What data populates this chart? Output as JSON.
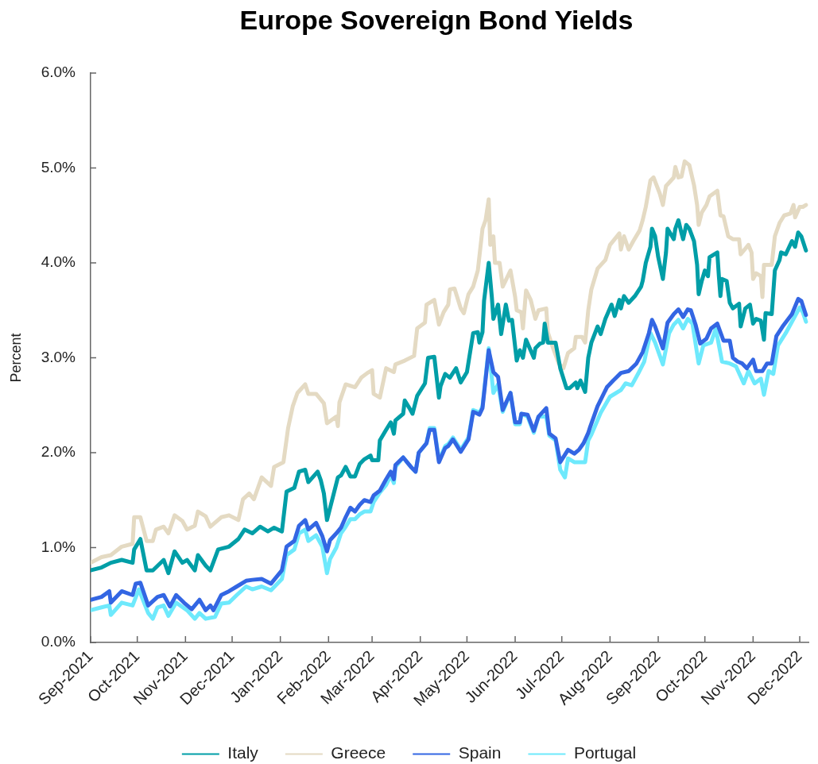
{
  "chart_data": {
    "type": "line",
    "title": "Europe Sovereign Bond Yields",
    "ylabel": "Percent",
    "xlim": [
      "2021-09-01",
      "2022-12-07"
    ],
    "xticks": [
      {
        "value": "2021-09-01",
        "label": "Sep-2021"
      },
      {
        "value": "2021-10-01",
        "label": "Oct-2021"
      },
      {
        "value": "2021-11-01",
        "label": "Nov-2021"
      },
      {
        "value": "2021-12-01",
        "label": "Dec-2021"
      },
      {
        "value": "2022-01-01",
        "label": "Jan-2022"
      },
      {
        "value": "2022-02-01",
        "label": "Feb-2022"
      },
      {
        "value": "2022-03-01",
        "label": "Mar-2022"
      },
      {
        "value": "2022-04-01",
        "label": "Apr-2022"
      },
      {
        "value": "2022-05-01",
        "label": "May-2022"
      },
      {
        "value": "2022-06-01",
        "label": "Jun-2022"
      },
      {
        "value": "2022-07-01",
        "label": "Jul-2022"
      },
      {
        "value": "2022-08-01",
        "label": "Aug-2022"
      },
      {
        "value": "2022-09-01",
        "label": "Sep-2022"
      },
      {
        "value": "2022-10-01",
        "label": "Oct-2022"
      },
      {
        "value": "2022-11-01",
        "label": "Nov-2022"
      },
      {
        "value": "2022-12-01",
        "label": "Dec-2022"
      }
    ],
    "ylim": [
      0,
      6
    ],
    "yticks": [
      {
        "value": 0,
        "label": "0.0%"
      },
      {
        "value": 1,
        "label": "1.0%"
      },
      {
        "value": 2,
        "label": "2.0%"
      },
      {
        "value": 3,
        "label": "3.0%"
      },
      {
        "value": 4,
        "label": "4.0%"
      },
      {
        "value": 5,
        "label": "5.0%"
      },
      {
        "value": 6,
        "label": "6.0%"
      }
    ],
    "legend": "bottom",
    "marker": "none",
    "line_style": "solid",
    "series": [
      {
        "name": "Italy",
        "color": "#009ea7",
        "x": [
          "2021-09-01",
          "2021-09-08",
          "2021-09-14",
          "2021-09-21",
          "2021-09-28",
          "2021-09-29",
          "2021-10-03",
          "2021-10-07",
          "2021-10-11",
          "2021-10-18",
          "2021-10-21",
          "2021-10-25",
          "2021-10-30",
          "2021-11-02",
          "2021-11-07",
          "2021-11-09",
          "2021-11-14",
          "2021-11-17",
          "2021-11-22",
          "2021-11-29",
          "2021-12-05",
          "2021-12-09",
          "2021-12-14",
          "2021-12-19",
          "2021-12-24",
          "2021-12-28",
          "2022-01-02",
          "2022-01-05",
          "2022-01-10",
          "2022-01-13",
          "2022-01-17",
          "2022-01-19",
          "2022-01-25",
          "2022-01-27",
          "2022-01-29",
          "2022-01-31",
          "2022-02-07",
          "2022-02-09",
          "2022-02-12",
          "2022-02-15",
          "2022-02-18",
          "2022-02-21",
          "2022-02-24",
          "2022-02-28",
          "2022-03-01",
          "2022-03-05",
          "2022-03-06",
          "2022-03-10",
          "2022-03-13",
          "2022-03-15",
          "2022-03-16",
          "2022-03-21",
          "2022-03-22",
          "2022-03-25",
          "2022-03-27",
          "2022-03-30",
          "2022-04-04",
          "2022-04-06",
          "2022-04-10",
          "2022-04-13",
          "2022-04-14",
          "2022-04-17",
          "2022-04-20",
          "2022-04-24",
          "2022-04-27",
          "2022-05-01",
          "2022-05-05",
          "2022-05-08",
          "2022-05-09",
          "2022-05-11",
          "2022-05-12",
          "2022-05-15",
          "2022-05-17",
          "2022-05-18",
          "2022-05-21",
          "2022-05-23",
          "2022-05-26",
          "2022-05-28",
          "2022-05-30",
          "2022-06-02",
          "2022-06-04",
          "2022-06-06",
          "2022-06-08",
          "2022-06-13",
          "2022-06-14",
          "2022-06-17",
          "2022-06-19",
          "2022-06-20",
          "2022-06-22",
          "2022-06-27",
          "2022-06-30",
          "2022-07-04",
          "2022-07-06",
          "2022-07-10",
          "2022-07-11",
          "2022-07-13",
          "2022-07-16",
          "2022-07-18",
          "2022-07-20",
          "2022-07-24",
          "2022-07-26",
          "2022-07-29",
          "2022-08-02",
          "2022-08-04",
          "2022-08-07",
          "2022-08-08",
          "2022-08-10",
          "2022-08-13",
          "2022-08-17",
          "2022-08-21",
          "2022-08-22",
          "2022-08-24",
          "2022-08-27",
          "2022-08-28",
          "2022-08-30",
          "2022-09-01",
          "2022-09-04",
          "2022-09-06",
          "2022-09-07",
          "2022-09-11",
          "2022-09-12",
          "2022-09-14",
          "2022-09-16",
          "2022-09-17",
          "2022-09-19",
          "2022-09-21",
          "2022-09-24",
          "2022-09-26",
          "2022-09-27",
          "2022-09-29",
          "2022-10-01",
          "2022-10-03",
          "2022-10-04",
          "2022-10-09",
          "2022-10-10",
          "2022-10-11",
          "2022-10-12",
          "2022-10-15",
          "2022-10-17",
          "2022-10-19",
          "2022-10-23",
          "2022-10-24",
          "2022-10-27",
          "2022-10-30",
          "2022-11-01",
          "2022-11-03",
          "2022-11-06",
          "2022-11-08",
          "2022-11-09",
          "2022-11-13",
          "2022-11-15",
          "2022-11-18",
          "2022-11-19",
          "2022-11-22",
          "2022-11-26",
          "2022-11-28",
          "2022-11-30",
          "2022-12-02",
          "2022-12-05"
        ],
        "values": [
          0.76,
          0.79,
          0.84,
          0.87,
          0.84,
          0.98,
          1.09,
          0.76,
          0.76,
          0.87,
          0.73,
          0.96,
          0.84,
          0.87,
          0.76,
          0.92,
          0.81,
          0.76,
          0.98,
          1.01,
          1.09,
          1.19,
          1.15,
          1.22,
          1.17,
          1.21,
          1.17,
          1.59,
          1.63,
          1.8,
          1.82,
          1.69,
          1.8,
          1.71,
          1.57,
          1.29,
          1.74,
          1.76,
          1.85,
          1.75,
          1.75,
          1.88,
          1.93,
          1.97,
          1.92,
          1.92,
          2.13,
          2.24,
          2.32,
          2.2,
          2.34,
          2.41,
          2.55,
          2.47,
          2.41,
          2.6,
          2.73,
          3.0,
          3.01,
          2.58,
          2.7,
          2.83,
          2.79,
          2.89,
          2.74,
          2.85,
          3.26,
          3.27,
          3.16,
          3.27,
          3.6,
          4.0,
          3.64,
          3.41,
          3.56,
          3.25,
          3.56,
          3.39,
          3.4,
          2.97,
          3.08,
          3.0,
          3.19,
          3.0,
          3.1,
          3.15,
          3.16,
          3.36,
          3.16,
          3.16,
          2.89,
          2.68,
          2.68,
          2.74,
          2.68,
          2.76,
          2.64,
          3.0,
          3.16,
          3.33,
          3.25,
          3.41,
          3.56,
          3.44,
          3.61,
          3.52,
          3.65,
          3.58,
          3.65,
          3.75,
          3.81,
          4.0,
          4.17,
          4.36,
          4.28,
          4.06,
          3.83,
          4.11,
          4.36,
          4.25,
          4.36,
          4.45,
          4.31,
          4.25,
          4.4,
          4.36,
          4.23,
          3.98,
          3.67,
          3.81,
          3.92,
          3.86,
          4.06,
          4.11,
          3.86,
          3.65,
          3.83,
          3.81,
          3.58,
          3.52,
          3.57,
          3.33,
          3.52,
          3.56,
          3.36,
          3.41,
          3.39,
          3.19,
          3.47,
          3.46,
          3.92,
          4.03,
          4.11,
          4.09,
          4.23,
          4.17,
          4.32,
          4.28,
          4.13
        ]
      },
      {
        "name": "Greece",
        "color": "#e4dac3",
        "x": [
          "2021-09-01",
          "2021-09-08",
          "2021-09-14",
          "2021-09-21",
          "2021-09-28",
          "2021-09-29",
          "2021-10-03",
          "2021-10-07",
          "2021-10-11",
          "2021-10-13",
          "2021-10-18",
          "2021-10-21",
          "2021-10-25",
          "2021-10-30",
          "2021-11-02",
          "2021-11-07",
          "2021-11-09",
          "2021-11-14",
          "2021-11-17",
          "2021-11-24",
          "2021-11-29",
          "2021-12-05",
          "2021-12-08",
          "2021-12-12",
          "2021-12-15",
          "2021-12-20",
          "2021-12-26",
          "2021-12-28",
          "2022-01-03",
          "2022-01-06",
          "2022-01-09",
          "2022-01-12",
          "2022-01-17",
          "2022-01-19",
          "2022-01-24",
          "2022-01-29",
          "2022-01-31",
          "2022-02-06",
          "2022-02-07",
          "2022-02-08",
          "2022-02-12",
          "2022-02-18",
          "2022-02-22",
          "2022-02-26",
          "2022-03-01",
          "2022-03-02",
          "2022-03-06",
          "2022-03-10",
          "2022-03-15",
          "2022-03-16",
          "2022-03-22",
          "2022-03-28",
          "2022-03-30",
          "2022-04-04",
          "2022-04-05",
          "2022-04-10",
          "2022-04-13",
          "2022-04-16",
          "2022-04-19",
          "2022-04-20",
          "2022-04-23",
          "2022-04-27",
          "2022-04-29",
          "2022-05-02",
          "2022-05-05",
          "2022-05-08",
          "2022-05-11",
          "2022-05-13",
          "2022-05-15",
          "2022-05-16",
          "2022-05-18",
          "2022-05-19",
          "2022-05-22",
          "2022-05-24",
          "2022-05-29",
          "2022-06-01",
          "2022-06-02",
          "2022-06-05",
          "2022-06-06",
          "2022-06-08",
          "2022-06-11",
          "2022-06-14",
          "2022-06-16",
          "2022-06-21",
          "2022-06-22",
          "2022-06-25",
          "2022-06-29",
          "2022-07-02",
          "2022-07-05",
          "2022-07-09",
          "2022-07-10",
          "2022-07-14",
          "2022-07-16",
          "2022-07-18",
          "2022-07-20",
          "2022-07-24",
          "2022-07-29",
          "2022-08-01",
          "2022-08-07",
          "2022-08-08",
          "2022-08-10",
          "2022-08-13",
          "2022-08-16",
          "2022-08-20",
          "2022-08-22",
          "2022-08-24",
          "2022-08-27",
          "2022-08-29",
          "2022-09-02",
          "2022-09-04",
          "2022-09-06",
          "2022-09-11",
          "2022-09-12",
          "2022-09-14",
          "2022-09-16",
          "2022-09-18",
          "2022-09-21",
          "2022-09-24",
          "2022-09-26",
          "2022-09-27",
          "2022-09-29",
          "2022-10-02",
          "2022-10-04",
          "2022-10-09",
          "2022-10-11",
          "2022-10-13",
          "2022-10-16",
          "2022-10-19",
          "2022-10-23",
          "2022-10-24",
          "2022-10-29",
          "2022-10-31",
          "2022-11-01",
          "2022-11-03",
          "2022-11-06",
          "2022-11-07",
          "2022-11-08",
          "2022-11-13",
          "2022-11-15",
          "2022-11-18",
          "2022-11-21",
          "2022-11-25",
          "2022-11-27",
          "2022-11-28",
          "2022-12-01",
          "2022-12-03",
          "2022-12-05"
        ],
        "values": [
          0.84,
          0.9,
          0.92,
          1.01,
          1.04,
          1.32,
          1.32,
          1.07,
          1.07,
          1.19,
          1.22,
          1.15,
          1.34,
          1.28,
          1.19,
          1.23,
          1.38,
          1.33,
          1.22,
          1.32,
          1.34,
          1.29,
          1.51,
          1.57,
          1.51,
          1.74,
          1.65,
          1.85,
          1.9,
          2.26,
          2.49,
          2.63,
          2.72,
          2.62,
          2.62,
          2.52,
          2.31,
          2.38,
          2.28,
          2.53,
          2.72,
          2.69,
          2.79,
          2.84,
          2.87,
          2.62,
          2.58,
          2.89,
          2.85,
          2.93,
          2.97,
          3.02,
          3.31,
          3.37,
          3.56,
          3.61,
          3.35,
          3.48,
          3.56,
          3.72,
          3.73,
          3.52,
          3.47,
          3.67,
          3.75,
          3.92,
          4.36,
          4.45,
          4.67,
          4.19,
          4.28,
          4.0,
          4.0,
          3.75,
          3.92,
          3.64,
          3.5,
          3.48,
          3.31,
          3.71,
          3.61,
          3.41,
          3.5,
          3.52,
          3.27,
          3.12,
          2.94,
          2.89,
          3.05,
          3.1,
          3.22,
          3.22,
          3.16,
          3.5,
          3.72,
          3.94,
          4.03,
          4.19,
          4.31,
          4.14,
          4.28,
          4.14,
          4.23,
          4.34,
          4.45,
          4.59,
          4.87,
          4.9,
          4.73,
          4.61,
          4.81,
          4.9,
          5.01,
          4.9,
          4.91,
          5.07,
          5.03,
          4.82,
          4.61,
          4.4,
          4.53,
          4.61,
          4.7,
          4.76,
          4.5,
          4.49,
          4.28,
          4.25,
          4.25,
          4.09,
          4.19,
          4.11,
          3.83,
          3.89,
          3.86,
          3.64,
          3.98,
          3.98,
          4.28,
          4.42,
          4.5,
          4.52,
          4.61,
          4.48,
          4.59,
          4.59,
          4.61
        ]
      },
      {
        "name": "Spain",
        "color": "#3366e3",
        "x": [
          "2021-09-01",
          "2021-09-08",
          "2021-09-13",
          "2021-09-14",
          "2021-09-21",
          "2021-09-28",
          "2021-09-30",
          "2021-10-03",
          "2021-10-08",
          "2021-10-14",
          "2021-10-18",
          "2021-10-22",
          "2021-10-26",
          "2021-10-31",
          "2021-11-05",
          "2021-11-10",
          "2021-11-14",
          "2021-11-17",
          "2021-11-19",
          "2021-11-24",
          "2021-11-29",
          "2021-12-04",
          "2021-12-10",
          "2021-12-14",
          "2021-12-20",
          "2021-12-26",
          "2022-01-02",
          "2022-01-05",
          "2022-01-10",
          "2022-01-13",
          "2022-01-17",
          "2022-01-19",
          "2022-01-24",
          "2022-01-28",
          "2022-01-31",
          "2022-02-02",
          "2022-02-06",
          "2022-02-09",
          "2022-02-12",
          "2022-02-15",
          "2022-02-18",
          "2022-02-21",
          "2022-02-24",
          "2022-02-28",
          "2022-03-02",
          "2022-03-06",
          "2022-03-10",
          "2022-03-13",
          "2022-03-15",
          "2022-03-16",
          "2022-03-21",
          "2022-03-26",
          "2022-03-29",
          "2022-03-31",
          "2022-04-05",
          "2022-04-07",
          "2022-04-10",
          "2022-04-13",
          "2022-04-17",
          "2022-04-19",
          "2022-04-22",
          "2022-04-27",
          "2022-05-02",
          "2022-05-05",
          "2022-05-08",
          "2022-05-09",
          "2022-05-11",
          "2022-05-15",
          "2022-05-18",
          "2022-05-21",
          "2022-05-24",
          "2022-05-29",
          "2022-06-01",
          "2022-06-04",
          "2022-06-05",
          "2022-06-09",
          "2022-06-13",
          "2022-06-16",
          "2022-06-21",
          "2022-06-23",
          "2022-06-27",
          "2022-06-30",
          "2022-07-05",
          "2022-07-09",
          "2022-07-12",
          "2022-07-15",
          "2022-07-18",
          "2022-07-19",
          "2022-07-24",
          "2022-07-30",
          "2022-08-03",
          "2022-08-08",
          "2022-08-13",
          "2022-08-18",
          "2022-08-22",
          "2022-08-26",
          "2022-08-28",
          "2022-08-30",
          "2022-09-04",
          "2022-09-07",
          "2022-09-11",
          "2022-09-14",
          "2022-09-17",
          "2022-09-20",
          "2022-09-22",
          "2022-09-25",
          "2022-09-28",
          "2022-10-02",
          "2022-10-05",
          "2022-10-09",
          "2022-10-13",
          "2022-10-17",
          "2022-10-19",
          "2022-10-22",
          "2022-10-25",
          "2022-10-28",
          "2022-11-01",
          "2022-11-03",
          "2022-11-07",
          "2022-11-10",
          "2022-11-13",
          "2022-11-16",
          "2022-11-20",
          "2022-11-26",
          "2022-11-30",
          "2022-12-02",
          "2022-12-05"
        ],
        "values": [
          0.45,
          0.48,
          0.54,
          0.42,
          0.54,
          0.5,
          0.62,
          0.63,
          0.39,
          0.48,
          0.5,
          0.38,
          0.5,
          0.42,
          0.35,
          0.45,
          0.34,
          0.39,
          0.34,
          0.5,
          0.54,
          0.59,
          0.65,
          0.66,
          0.67,
          0.62,
          0.76,
          1.01,
          1.07,
          1.23,
          1.29,
          1.19,
          1.26,
          1.12,
          0.96,
          1.08,
          1.15,
          1.21,
          1.32,
          1.42,
          1.38,
          1.45,
          1.5,
          1.48,
          1.55,
          1.6,
          1.72,
          1.8,
          1.72,
          1.87,
          1.95,
          1.85,
          1.8,
          2.0,
          2.1,
          2.24,
          2.24,
          1.9,
          2.05,
          2.07,
          2.14,
          2.01,
          2.14,
          2.43,
          2.41,
          2.4,
          2.47,
          3.08,
          2.85,
          2.8,
          2.45,
          2.63,
          2.32,
          2.32,
          2.41,
          2.4,
          2.23,
          2.38,
          2.47,
          2.2,
          2.15,
          1.9,
          2.03,
          1.99,
          2.03,
          2.1,
          2.21,
          2.26,
          2.49,
          2.69,
          2.76,
          2.84,
          2.86,
          2.94,
          3.06,
          3.26,
          3.4,
          3.33,
          3.1,
          3.37,
          3.46,
          3.51,
          3.43,
          3.51,
          3.5,
          3.35,
          3.15,
          3.2,
          3.31,
          3.36,
          3.18,
          3.18,
          3.0,
          2.96,
          2.94,
          2.89,
          2.98,
          2.86,
          2.86,
          2.94,
          2.94,
          3.23,
          3.33,
          3.46,
          3.62,
          3.6,
          3.45
        ]
      },
      {
        "name": "Portugal",
        "color": "#6ee9fc",
        "x": [
          "2021-09-01",
          "2021-09-08",
          "2021-09-13",
          "2021-09-14",
          "2021-09-21",
          "2021-09-28",
          "2021-10-02",
          "2021-10-08",
          "2021-10-11",
          "2021-10-14",
          "2021-10-18",
          "2021-10-21",
          "2021-10-26",
          "2021-11-02",
          "2021-11-07",
          "2021-11-10",
          "2021-11-14",
          "2021-11-20",
          "2021-11-24",
          "2021-11-29",
          "2021-12-04",
          "2021-12-10",
          "2021-12-14",
          "2021-12-20",
          "2021-12-26",
          "2022-01-02",
          "2022-01-05",
          "2022-01-10",
          "2022-01-13",
          "2022-01-17",
          "2022-01-19",
          "2022-01-24",
          "2022-01-28",
          "2022-01-31",
          "2022-02-02",
          "2022-02-06",
          "2022-02-09",
          "2022-02-12",
          "2022-02-15",
          "2022-02-18",
          "2022-02-21",
          "2022-02-24",
          "2022-02-28",
          "2022-03-02",
          "2022-03-06",
          "2022-03-10",
          "2022-03-13",
          "2022-03-15",
          "2022-03-16",
          "2022-03-21",
          "2022-03-26",
          "2022-03-29",
          "2022-03-31",
          "2022-04-05",
          "2022-04-07",
          "2022-04-10",
          "2022-04-13",
          "2022-04-17",
          "2022-04-19",
          "2022-04-22",
          "2022-04-27",
          "2022-05-02",
          "2022-05-05",
          "2022-05-08",
          "2022-05-09",
          "2022-05-11",
          "2022-05-15",
          "2022-05-18",
          "2022-05-21",
          "2022-05-24",
          "2022-05-29",
          "2022-06-01",
          "2022-06-04",
          "2022-06-05",
          "2022-06-09",
          "2022-06-13",
          "2022-06-16",
          "2022-06-21",
          "2022-06-23",
          "2022-06-27",
          "2022-06-30",
          "2022-07-03",
          "2022-07-05",
          "2022-07-09",
          "2022-07-16",
          "2022-07-18",
          "2022-07-20",
          "2022-07-26",
          "2022-08-01",
          "2022-08-08",
          "2022-08-11",
          "2022-08-15",
          "2022-08-19",
          "2022-08-23",
          "2022-08-27",
          "2022-08-30",
          "2022-09-04",
          "2022-09-08",
          "2022-09-11",
          "2022-09-14",
          "2022-09-17",
          "2022-09-20",
          "2022-09-23",
          "2022-09-27",
          "2022-09-30",
          "2022-10-05",
          "2022-10-08",
          "2022-10-12",
          "2022-10-17",
          "2022-10-21",
          "2022-10-26",
          "2022-10-29",
          "2022-11-02",
          "2022-11-06",
          "2022-11-08",
          "2022-11-11",
          "2022-11-14",
          "2022-11-17",
          "2022-11-22",
          "2022-11-27",
          "2022-12-01",
          "2022-12-03",
          "2022-12-05"
        ],
        "values": [
          0.34,
          0.37,
          0.39,
          0.29,
          0.42,
          0.39,
          0.56,
          0.31,
          0.25,
          0.37,
          0.39,
          0.28,
          0.42,
          0.34,
          0.25,
          0.31,
          0.25,
          0.27,
          0.41,
          0.42,
          0.5,
          0.59,
          0.56,
          0.59,
          0.55,
          0.67,
          0.92,
          0.98,
          1.15,
          1.19,
          1.07,
          1.13,
          1.01,
          0.73,
          0.88,
          1.0,
          1.15,
          1.22,
          1.3,
          1.3,
          1.35,
          1.38,
          1.38,
          1.48,
          1.58,
          1.66,
          1.76,
          1.68,
          1.85,
          1.95,
          1.85,
          1.8,
          2.0,
          2.1,
          2.26,
          2.26,
          1.92,
          2.07,
          2.09,
          2.16,
          2.03,
          2.16,
          2.45,
          2.43,
          2.41,
          2.49,
          3.1,
          2.63,
          2.72,
          2.43,
          2.63,
          2.3,
          2.3,
          2.41,
          2.38,
          2.21,
          2.38,
          2.38,
          2.18,
          2.13,
          1.82,
          1.74,
          1.94,
          1.9,
          1.9,
          2.13,
          2.19,
          2.42,
          2.59,
          2.66,
          2.73,
          2.71,
          2.83,
          2.96,
          3.26,
          3.16,
          2.93,
          3.26,
          3.35,
          3.4,
          3.31,
          3.41,
          3.36,
          2.94,
          3.13,
          3.16,
          3.31,
          2.96,
          2.94,
          2.91,
          2.73,
          2.86,
          2.73,
          2.78,
          2.61,
          2.86,
          2.83,
          3.13,
          3.26,
          3.41,
          3.53,
          3.48,
          3.38
        ]
      }
    ]
  }
}
